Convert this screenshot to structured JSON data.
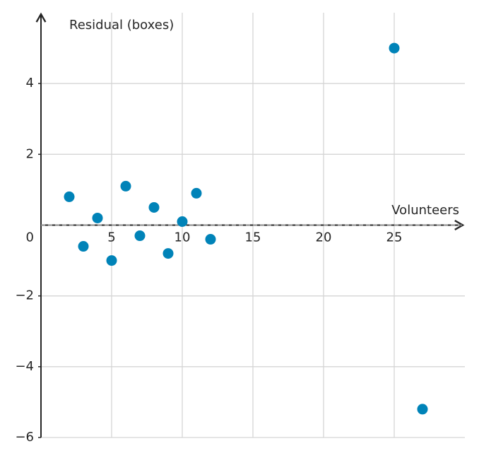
{
  "chart_data": {
    "type": "scatter",
    "x_label": "Volunteers",
    "y_label": "Residual (boxes)",
    "x": [
      2,
      3,
      4,
      5,
      6,
      7,
      8,
      9,
      10,
      11,
      12,
      25,
      27
    ],
    "series": [
      {
        "color": "#0083b8",
        "values": [
          0.8,
          -0.6,
          0.2,
          -1.0,
          1.1,
          -0.3,
          0.5,
          -0.8,
          0.1,
          0.9,
          -0.4,
          5.0,
          -5.2
        ]
      }
    ],
    "xlim": [
      0,
      30
    ],
    "ylim": [
      -6,
      6
    ],
    "xticks": [
      5,
      10,
      15,
      20,
      25
    ],
    "yticks": [
      {
        "value": -6,
        "label": "−6"
      },
      {
        "value": -4,
        "label": "−4"
      },
      {
        "value": -2,
        "label": "−2"
      },
      0,
      2,
      4
    ],
    "grid": true
  }
}
